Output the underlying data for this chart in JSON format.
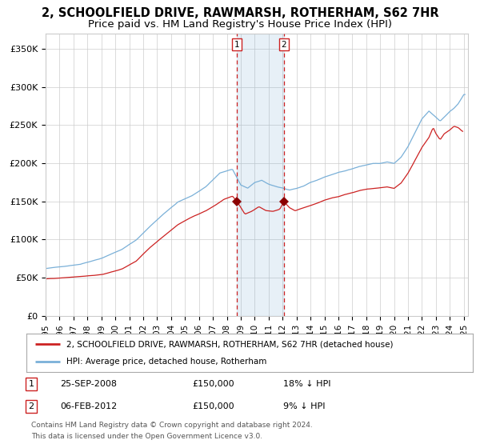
{
  "title": "2, SCHOOLFIELD DRIVE, RAWMARSH, ROTHERHAM, S62 7HR",
  "subtitle": "Price paid vs. HM Land Registry's House Price Index (HPI)",
  "title_fontsize": 10.5,
  "subtitle_fontsize": 9.5,
  "ylim": [
    0,
    370000
  ],
  "yticks": [
    0,
    50000,
    100000,
    150000,
    200000,
    250000,
    300000,
    350000
  ],
  "ytick_labels": [
    "£0",
    "£50K",
    "£100K",
    "£150K",
    "£200K",
    "£250K",
    "£300K",
    "£350K"
  ],
  "xlim_start": 1995.0,
  "xlim_end": 2025.3,
  "xtick_years": [
    1995,
    1996,
    1997,
    1998,
    1999,
    2000,
    2001,
    2002,
    2003,
    2004,
    2005,
    2006,
    2007,
    2008,
    2009,
    2010,
    2011,
    2012,
    2013,
    2014,
    2015,
    2016,
    2017,
    2018,
    2019,
    2020,
    2021,
    2022,
    2023,
    2024,
    2025
  ],
  "hpi_color": "#7ab0d8",
  "price_color": "#cc2222",
  "background_color": "#ffffff",
  "grid_color": "#cccccc",
  "sale1_x": 2008.73,
  "sale1_y": 150000,
  "sale2_x": 2012.09,
  "sale2_y": 150000,
  "shade_x1": 2008.73,
  "shade_x2": 2012.09,
  "legend_line1": "2, SCHOOLFIELD DRIVE, RAWMARSH, ROTHERHAM, S62 7HR (detached house)",
  "legend_line2": "HPI: Average price, detached house, Rotherham",
  "table_row1": [
    "1",
    "25-SEP-2008",
    "£150,000",
    "18% ↓ HPI"
  ],
  "table_row2": [
    "2",
    "06-FEB-2012",
    "£150,000",
    "9% ↓ HPI"
  ],
  "footnote1": "Contains HM Land Registry data © Crown copyright and database right 2024.",
  "footnote2": "This data is licensed under the Open Government Licence v3.0.",
  "marker_color": "#8b0000"
}
